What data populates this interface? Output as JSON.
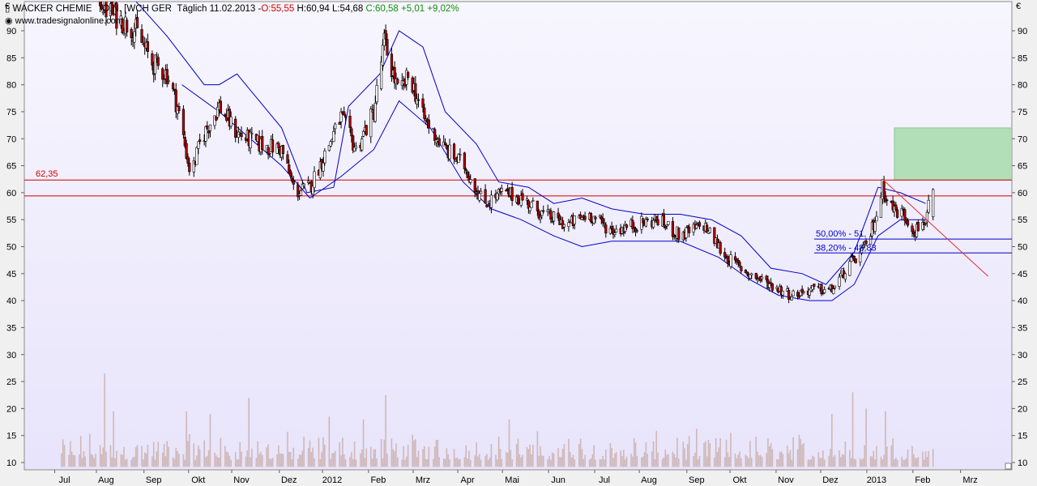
{
  "header": {
    "instrument": "WACKER CHEMIE",
    "sub": "O.N. [WCH GER",
    "period": "Täglich",
    "date": "11.02.2013",
    "open": "O:55,55",
    "high": "H:60,94",
    "low": "L:54,68",
    "close": "C:60,58",
    "change": "+5,01",
    "change_pct": "+9,02%",
    "website": "www.tradesignalonline.com",
    "currency": "€"
  },
  "colors": {
    "background": "#e8e4fb",
    "candle_up": "#ffffff",
    "candle_down": "#b00000",
    "channel_line": "#0000c8",
    "horizontal_line": "#d00000",
    "fib_line": "#0000c8",
    "target_zone": "#b2deb8",
    "volume": "#cfb8b8"
  },
  "chart_data": {
    "type": "candlestick",
    "y_axis": {
      "min": 10,
      "max": 95,
      "ticks": [
        10,
        15,
        20,
        25,
        30,
        35,
        40,
        45,
        50,
        55,
        60,
        65,
        70,
        75,
        80,
        85,
        90
      ]
    },
    "x_tick_labels": [
      "Jul",
      "Aug",
      "Sep",
      "Okt",
      "Nov",
      "Dez",
      "2012",
      "Feb",
      "Mrz",
      "Apr",
      "Mai",
      "Jun",
      "Jul",
      "Aug",
      "Sep",
      "Okt",
      "Nov",
      "Dez",
      "2013",
      "Feb",
      "Mrz"
    ],
    "price_path": [
      [
        "2011-07-26",
        99
      ],
      [
        "2011-08-05",
        94
      ],
      [
        "2011-08-15",
        92
      ],
      [
        "2011-08-25",
        90
      ],
      [
        "2011-09-05",
        84
      ],
      [
        "2011-09-15",
        82
      ],
      [
        "2011-09-22",
        76
      ],
      [
        "2011-10-01",
        63
      ],
      [
        "2011-10-08",
        70
      ],
      [
        "2011-10-20",
        76
      ],
      [
        "2011-11-01",
        71
      ],
      [
        "2011-11-15",
        69
      ],
      [
        "2011-12-01",
        68
      ],
      [
        "2011-12-10",
        60
      ],
      [
        "2011-12-20",
        61
      ],
      [
        "2012-01-02",
        69
      ],
      [
        "2012-01-10",
        74
      ],
      [
        "2012-01-20",
        68
      ],
      [
        "2012-02-01",
        75
      ],
      [
        "2012-02-08",
        88
      ],
      [
        "2012-02-18",
        78
      ],
      [
        "2012-02-25",
        82
      ],
      [
        "2012-03-05",
        74
      ],
      [
        "2012-03-20",
        68
      ],
      [
        "2012-04-02",
        65
      ],
      [
        "2012-04-15",
        58
      ],
      [
        "2012-04-28",
        60
      ],
      [
        "2012-05-10",
        59
      ],
      [
        "2012-05-25",
        56
      ],
      [
        "2012-06-10",
        54
      ],
      [
        "2012-06-25",
        56
      ],
      [
        "2012-07-10",
        53
      ],
      [
        "2012-07-25",
        54
      ],
      [
        "2012-08-10",
        55
      ],
      [
        "2012-08-25",
        52
      ],
      [
        "2012-09-10",
        54
      ],
      [
        "2012-09-25",
        48
      ],
      [
        "2012-10-10",
        45
      ],
      [
        "2012-10-25",
        43
      ],
      [
        "2012-11-08",
        41
      ],
      [
        "2012-11-20",
        42
      ],
      [
        "2012-12-05",
        42
      ],
      [
        "2012-12-15",
        46
      ],
      [
        "2012-12-28",
        50
      ],
      [
        "2013-01-04",
        56
      ],
      [
        "2013-01-08",
        61
      ],
      [
        "2013-01-15",
        57
      ],
      [
        "2013-01-22",
        56
      ],
      [
        "2013-01-30",
        53
      ],
      [
        "2013-02-06",
        55
      ],
      [
        "2013-02-11",
        60.58
      ]
    ],
    "channel_upper": [
      [
        "2011-08-20",
        97
      ],
      [
        "2011-09-15",
        89
      ],
      [
        "2011-10-10",
        80
      ],
      [
        "2011-10-20",
        80
      ],
      [
        "2011-11-01",
        82
      ],
      [
        "2011-11-10",
        79
      ],
      [
        "2011-12-01",
        72
      ],
      [
        "2011-12-18",
        60
      ],
      [
        "2012-01-05",
        61
      ],
      [
        "2012-01-15",
        76
      ],
      [
        "2012-02-05",
        82
      ],
      [
        "2012-02-18",
        90
      ],
      [
        "2012-03-05",
        87
      ],
      [
        "2012-03-20",
        75
      ],
      [
        "2012-04-10",
        69
      ],
      [
        "2012-04-25",
        62
      ],
      [
        "2012-05-15",
        61
      ],
      [
        "2012-06-01",
        58
      ],
      [
        "2012-06-20",
        59
      ],
      [
        "2012-07-10",
        57
      ],
      [
        "2012-08-01",
        56
      ],
      [
        "2012-08-25",
        56
      ],
      [
        "2012-09-15",
        55
      ],
      [
        "2012-10-05",
        52
      ],
      [
        "2012-10-25",
        46
      ],
      [
        "2012-11-15",
        45
      ],
      [
        "2012-12-01",
        43
      ],
      [
        "2012-12-20",
        49
      ],
      [
        "2013-01-05",
        61
      ],
      [
        "2013-01-20",
        60
      ],
      [
        "2013-02-06",
        58
      ]
    ],
    "channel_lower": [
      [
        "2011-09-25",
        80
      ],
      [
        "2011-10-20",
        75
      ],
      [
        "2011-11-10",
        70
      ],
      [
        "2011-12-01",
        65
      ],
      [
        "2011-12-20",
        59
      ],
      [
        "2012-01-10",
        63
      ],
      [
        "2012-02-01",
        68
      ],
      [
        "2012-02-18",
        77
      ],
      [
        "2012-03-10",
        72
      ],
      [
        "2012-04-01",
        62
      ],
      [
        "2012-04-20",
        57
      ],
      [
        "2012-05-10",
        55
      ],
      [
        "2012-06-01",
        52
      ],
      [
        "2012-06-20",
        50
      ],
      [
        "2012-07-10",
        51
      ],
      [
        "2012-08-01",
        51
      ],
      [
        "2012-08-25",
        51
      ],
      [
        "2012-09-20",
        48
      ],
      [
        "2012-10-10",
        44
      ],
      [
        "2012-10-30",
        41
      ],
      [
        "2012-11-20",
        40
      ],
      [
        "2012-12-05",
        40
      ],
      [
        "2012-12-20",
        43
      ],
      [
        "2013-01-05",
        52
      ],
      [
        "2013-01-20",
        55
      ],
      [
        "2013-02-06",
        55
      ]
    ],
    "horizontal_lines": [
      {
        "label": "62,35",
        "value": 62.35
      },
      {
        "label": "",
        "value": 59.4
      }
    ],
    "fibonacci_levels": [
      {
        "label": "50,00% - 51,",
        "value": 51.4,
        "from": "2012-12-15"
      },
      {
        "label": "38,20% - 48,83",
        "value": 48.83,
        "from": "2012-12-15"
      }
    ],
    "trendline": {
      "from": [
        "2013-01-08",
        62.5
      ],
      "to": [
        "2013-03-20",
        44.5
      ]
    },
    "target_zone": {
      "from": "2013-01-16",
      "y_low": 62.35,
      "y_high": 72.0
    },
    "volume": {
      "baseline": 10,
      "typical_range": [
        10,
        17
      ],
      "spikes": [
        [
          "2011-08-04",
          26.5
        ],
        [
          "2011-08-10",
          19.5
        ],
        [
          "2011-09-28",
          19.5
        ],
        [
          "2011-10-08",
          18
        ],
        [
          "2011-10-14",
          19
        ],
        [
          "2011-11-09",
          22
        ],
        [
          "2011-12-10",
          17
        ],
        [
          "2012-01-02",
          18.5
        ],
        [
          "2012-01-25",
          18
        ],
        [
          "2012-02-09",
          22.5
        ],
        [
          "2012-05-02",
          18
        ],
        [
          "2012-12-05",
          19
        ],
        [
          "2012-12-19",
          23
        ],
        [
          "2012-12-28",
          20
        ],
        [
          "2013-01-10",
          19.5
        ]
      ]
    }
  }
}
